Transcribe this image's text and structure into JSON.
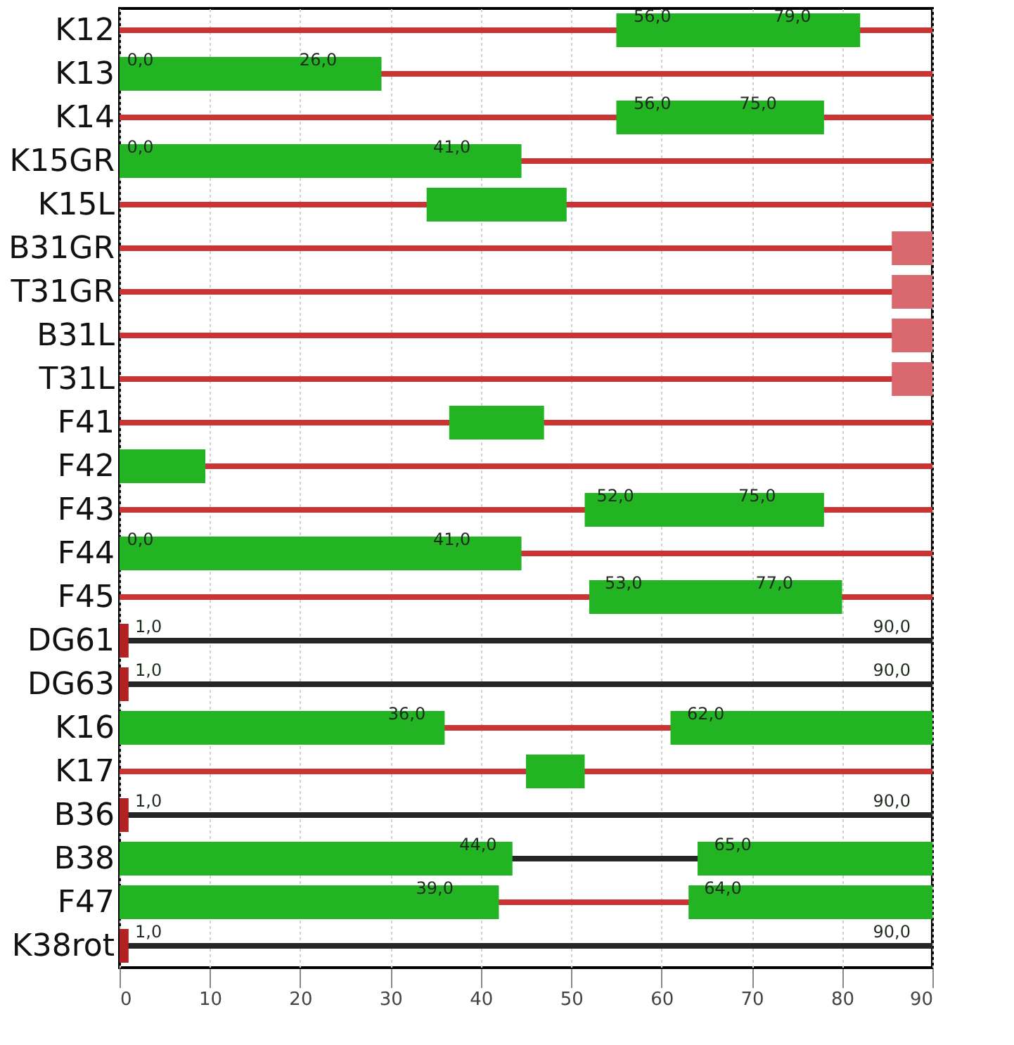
{
  "chart_data": {
    "type": "bar",
    "orientation": "horizontal",
    "categories": [
      "K12",
      "K13",
      "K14",
      "K15GR",
      "K15L",
      "B31GR",
      "T31GR",
      "B31L",
      "T31L",
      "F41",
      "F42",
      "F43",
      "F44",
      "F45",
      "DG61",
      "DG63",
      "K16",
      "K17",
      "B36",
      "B38",
      "F47",
      "K38rot"
    ],
    "series": [
      {
        "color": "#22b422",
        "base": [
          55,
          0,
          55,
          0,
          34,
          null,
          null,
          null,
          null,
          36.5,
          0,
          51.5,
          0,
          52,
          null,
          null,
          0,
          45,
          null,
          0,
          0,
          null
        ],
        "values": [
          27,
          29,
          23,
          44.5,
          15.5,
          null,
          null,
          null,
          null,
          10.5,
          9.5,
          26.5,
          44.5,
          28,
          null,
          null,
          36,
          6.5,
          null,
          43.5,
          42,
          null
        ]
      },
      {
        "color": "#22b422",
        "base": [
          null,
          null,
          null,
          null,
          null,
          null,
          null,
          null,
          null,
          null,
          null,
          null,
          null,
          null,
          null,
          null,
          61,
          null,
          null,
          64,
          63,
          null
        ],
        "values": [
          null,
          null,
          null,
          null,
          null,
          null,
          null,
          null,
          null,
          null,
          null,
          null,
          null,
          null,
          null,
          null,
          29,
          null,
          null,
          26,
          27,
          null
        ]
      },
      {
        "color": "#b22222",
        "base": [
          null,
          null,
          null,
          null,
          null,
          null,
          null,
          null,
          null,
          null,
          null,
          null,
          null,
          null,
          0,
          0,
          null,
          null,
          0,
          null,
          null,
          0
        ],
        "values": [
          null,
          null,
          null,
          null,
          null,
          null,
          null,
          null,
          null,
          null,
          null,
          null,
          null,
          null,
          1,
          1,
          null,
          null,
          1,
          null,
          null,
          1
        ]
      },
      {
        "color": "#d9696e",
        "base": [
          null,
          null,
          null,
          null,
          null,
          85.5,
          85.5,
          85.5,
          85.5,
          null,
          null,
          null,
          null,
          null,
          null,
          null,
          null,
          null,
          null,
          null,
          null,
          null
        ],
        "values": [
          null,
          null,
          null,
          null,
          null,
          4.5,
          4.5,
          4.5,
          4.5,
          null,
          null,
          null,
          null,
          null,
          null,
          null,
          null,
          null,
          null,
          null,
          null,
          null
        ]
      }
    ],
    "ref_lines": [
      {
        "axis": "y",
        "value": "K12",
        "color": "#cc3333"
      },
      {
        "axis": "y",
        "value": "K13",
        "color": "#cc3333"
      },
      {
        "axis": "y",
        "value": "K14",
        "color": "#cc3333"
      },
      {
        "axis": "y",
        "value": "K15GR",
        "color": "#cc3333"
      },
      {
        "axis": "y",
        "value": "K15L",
        "color": "#cc3333"
      },
      {
        "axis": "y",
        "value": "B31GR",
        "color": "#cc3333"
      },
      {
        "axis": "y",
        "value": "T31GR",
        "color": "#cc3333"
      },
      {
        "axis": "y",
        "value": "B31L",
        "color": "#cc3333"
      },
      {
        "axis": "y",
        "value": "T31L",
        "color": "#cc3333"
      },
      {
        "axis": "y",
        "value": "F41",
        "color": "#cc3333"
      },
      {
        "axis": "y",
        "value": "F42",
        "color": "#cc3333"
      },
      {
        "axis": "y",
        "value": "F43",
        "color": "#cc3333"
      },
      {
        "axis": "y",
        "value": "F44",
        "color": "#cc3333"
      },
      {
        "axis": "y",
        "value": "F45",
        "color": "#cc3333"
      },
      {
        "axis": "y",
        "value": "DG61",
        "color": "#262626"
      },
      {
        "axis": "y",
        "value": "DG63",
        "color": "#262626"
      },
      {
        "axis": "y",
        "value": "K16",
        "color": "#cc3333"
      },
      {
        "axis": "y",
        "value": "K17",
        "color": "#cc3333"
      },
      {
        "axis": "y",
        "value": "B36",
        "color": "#262626"
      },
      {
        "axis": "y",
        "value": "B38",
        "color": "#262626"
      },
      {
        "axis": "y",
        "value": "F47",
        "color": "#cc3333"
      },
      {
        "axis": "y",
        "value": "K38rot",
        "color": "#262626"
      }
    ],
    "annotations": [
      {
        "text": "56,0",
        "x": 59,
        "y": "K12"
      },
      {
        "text": "79,0",
        "x": 74.5,
        "y": "K12"
      },
      {
        "text": "0,0",
        "x": 2.3,
        "y": "K13"
      },
      {
        "text": "26,0",
        "x": 22,
        "y": "K13"
      },
      {
        "text": "56,0",
        "x": 59,
        "y": "K14"
      },
      {
        "text": "75,0",
        "x": 70.7,
        "y": "K14"
      },
      {
        "text": "0,0",
        "x": 2.3,
        "y": "K15GR"
      },
      {
        "text": "41,0",
        "x": 36.8,
        "y": "K15GR"
      },
      {
        "text": "52,0",
        "x": 54.9,
        "y": "F43"
      },
      {
        "text": "75,0",
        "x": 70.6,
        "y": "F43"
      },
      {
        "text": "0,0",
        "x": 2.3,
        "y": "F44"
      },
      {
        "text": "41,0",
        "x": 36.8,
        "y": "F44"
      },
      {
        "text": "53,0",
        "x": 55.8,
        "y": "F45"
      },
      {
        "text": "77,0",
        "x": 72.5,
        "y": "F45"
      },
      {
        "text": "1,0",
        "x": 3.2,
        "y": "DG61"
      },
      {
        "text": "90,0",
        "x": 85.5,
        "y": "DG61"
      },
      {
        "text": "1,0",
        "x": 3.2,
        "y": "DG63"
      },
      {
        "text": "90,0",
        "x": 85.5,
        "y": "DG63"
      },
      {
        "text": "36,0",
        "x": 31.8,
        "y": "K16"
      },
      {
        "text": "62,0",
        "x": 64.9,
        "y": "K16"
      },
      {
        "text": "1,0",
        "x": 3.2,
        "y": "B36"
      },
      {
        "text": "90,0",
        "x": 85.5,
        "y": "B36"
      },
      {
        "text": "44,0",
        "x": 39.7,
        "y": "B38"
      },
      {
        "text": "65,0",
        "x": 67.9,
        "y": "B38"
      },
      {
        "text": "39,0",
        "x": 34.9,
        "y": "F47"
      },
      {
        "text": "64,0",
        "x": 66.8,
        "y": "F47"
      },
      {
        "text": "1,0",
        "x": 3.2,
        "y": "K38rot"
      },
      {
        "text": "90,0",
        "x": 85.5,
        "y": "K38rot"
      }
    ],
    "xlim": [
      0,
      90
    ],
    "xticks": [
      0,
      10,
      20,
      30,
      40,
      50,
      60,
      70,
      80,
      90
    ],
    "grid": "x"
  }
}
